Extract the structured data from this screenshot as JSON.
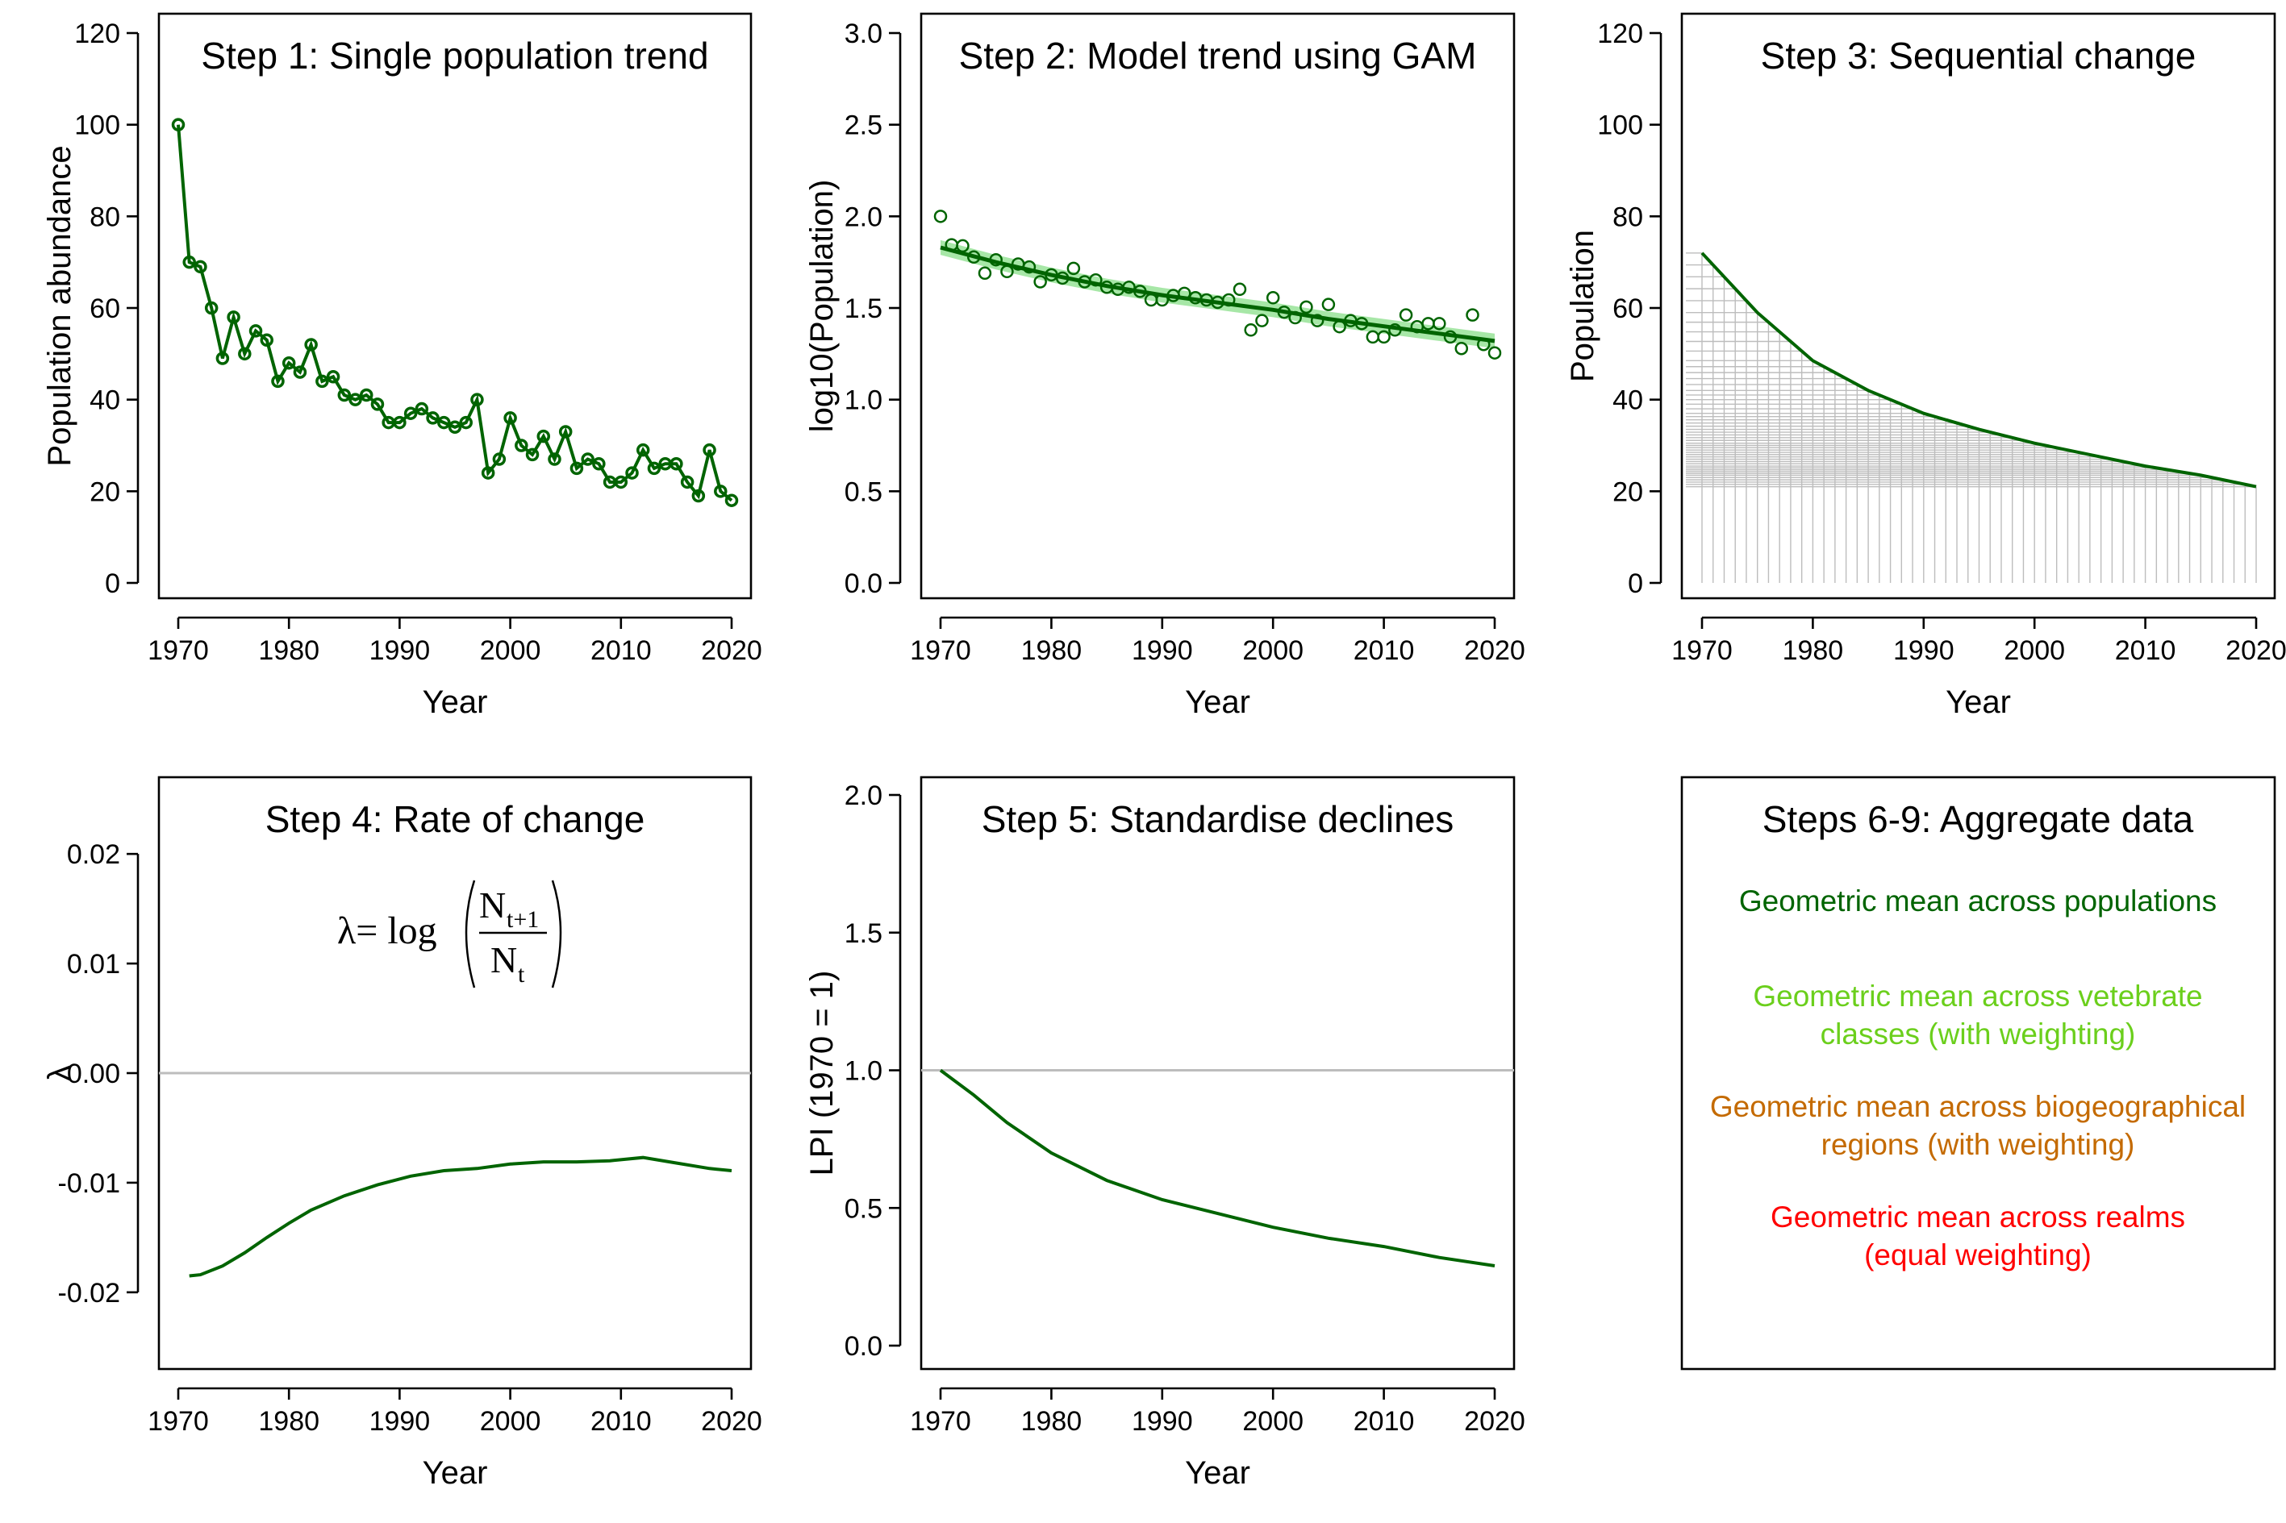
{
  "colors": {
    "dark_green": "#006400",
    "band_green": "#5fd35f",
    "light_green": "#6bcf1c",
    "brown": "#c46a00",
    "red": "#ff0000",
    "grid_grey": "#bdbdbd"
  },
  "chart_data": [
    {
      "type": "line",
      "title": "Step 1: Single population trend",
      "xlabel": "Year",
      "ylabel": "Population abundance",
      "xlim": [
        1970,
        2020
      ],
      "ylim": [
        0,
        120
      ],
      "xticks": [
        "1970",
        "1980",
        "1990",
        "2000",
        "2010",
        "2020"
      ],
      "yticks": [
        "0",
        "20",
        "40",
        "60",
        "80",
        "100",
        "120"
      ],
      "markers": true,
      "series": [
        {
          "x": [
            1970,
            1971,
            1972,
            1973,
            1974,
            1975,
            1976,
            1977,
            1978,
            1979,
            1980,
            1981,
            1982,
            1983,
            1984,
            1985,
            1986,
            1987,
            1988,
            1989,
            1990,
            1991,
            1992,
            1993,
            1994,
            1995,
            1996,
            1997,
            1998,
            1999,
            2000,
            2001,
            2002,
            2003,
            2004,
            2005,
            2006,
            2007,
            2008,
            2009,
            2010,
            2011,
            2012,
            2013,
            2014,
            2015,
            2016,
            2017,
            2018,
            2019,
            2020
          ],
          "y": [
            100,
            70,
            69,
            60,
            49,
            58,
            50,
            55,
            53,
            44,
            48,
            46,
            52,
            44,
            45,
            41,
            40,
            41,
            39,
            35,
            35,
            37,
            38,
            36,
            35,
            34,
            35,
            40,
            24,
            27,
            36,
            30,
            28,
            32,
            27,
            33,
            25,
            27,
            26,
            22,
            22,
            24,
            29,
            25,
            26,
            26,
            22,
            19,
            29,
            20,
            18
          ]
        }
      ]
    },
    {
      "type": "scatter",
      "title": "Step 2: Model trend using GAM",
      "xlabel": "Year",
      "ylabel": "log10(Population)",
      "xlim": [
        1970,
        2020
      ],
      "ylim": [
        0,
        3
      ],
      "xticks": [
        "1970",
        "1980",
        "1990",
        "2000",
        "2010",
        "2020"
      ],
      "yticks": [
        "0.0",
        "0.5",
        "1.0",
        "1.5",
        "2.0",
        "2.5",
        "3.0"
      ],
      "points": {
        "x": [
          1970,
          1971,
          1972,
          1973,
          1974,
          1975,
          1976,
          1977,
          1978,
          1979,
          1980,
          1981,
          1982,
          1983,
          1984,
          1985,
          1986,
          1987,
          1988,
          1989,
          1990,
          1991,
          1992,
          1993,
          1994,
          1995,
          1996,
          1997,
          1998,
          1999,
          2000,
          2001,
          2002,
          2003,
          2004,
          2005,
          2006,
          2007,
          2008,
          2009,
          2010,
          2011,
          2012,
          2013,
          2014,
          2015,
          2016,
          2017,
          2018,
          2019,
          2020
        ],
        "y": [
          2.0,
          1.845,
          1.839,
          1.778,
          1.69,
          1.763,
          1.699,
          1.74,
          1.724,
          1.643,
          1.681,
          1.663,
          1.716,
          1.643,
          1.653,
          1.613,
          1.602,
          1.613,
          1.591,
          1.544,
          1.544,
          1.568,
          1.58,
          1.556,
          1.544,
          1.531,
          1.544,
          1.602,
          1.38,
          1.431,
          1.556,
          1.477,
          1.447,
          1.505,
          1.431,
          1.519,
          1.398,
          1.431,
          1.415,
          1.342,
          1.342,
          1.38,
          1.462,
          1.398,
          1.415,
          1.415,
          1.342,
          1.279,
          1.462,
          1.301,
          1.255
        ]
      },
      "gam_fit": {
        "x": [
          1970,
          1975,
          1980,
          1985,
          1990,
          1995,
          2000,
          2005,
          2010,
          2015,
          2020
        ],
        "y": [
          1.83,
          1.75,
          1.68,
          1.62,
          1.57,
          1.53,
          1.49,
          1.44,
          1.4,
          1.36,
          1.32
        ],
        "ci_halfwidth": 0.04
      }
    },
    {
      "type": "line",
      "title": "Step 3: Sequential change",
      "xlabel": "Year",
      "ylabel": "Population",
      "xlim": [
        1970,
        2020
      ],
      "ylim": [
        0,
        120
      ],
      "xticks": [
        "1970",
        "1980",
        "1990",
        "2000",
        "2010",
        "2020"
      ],
      "yticks": [
        "0",
        "20",
        "40",
        "60",
        "80",
        "100",
        "120"
      ],
      "drop_lines": true,
      "series": [
        {
          "x": [
            1970,
            1975,
            1980,
            1985,
            1990,
            1995,
            2000,
            2005,
            2010,
            2015,
            2020
          ],
          "y": [
            72,
            59,
            48.5,
            42,
            37,
            33.5,
            30.5,
            28,
            25.5,
            23.5,
            21
          ]
        }
      ]
    },
    {
      "type": "line",
      "title": "Step 4: Rate of change",
      "xlabel": "Year",
      "ylabel": "λ",
      "xlim": [
        1970,
        2020
      ],
      "ylim": [
        -0.027,
        0.027
      ],
      "xticks": [
        "1970",
        "1980",
        "1990",
        "2000",
        "2010",
        "2020"
      ],
      "yticks": [
        "-0.02",
        "-0.01",
        "0.00",
        "0.01",
        "0.02"
      ],
      "reference_line": 0,
      "formula": {
        "lhs": "λ= log",
        "numerator": "N",
        "numerator_sub": "t+1",
        "denominator": "N",
        "denominator_sub": "t"
      },
      "series": [
        {
          "x": [
            1971,
            1972,
            1974,
            1976,
            1978,
            1980,
            1982,
            1985,
            1988,
            1991,
            1994,
            1997,
            2000,
            2003,
            2006,
            2009,
            2012,
            2015,
            2018,
            2020
          ],
          "y": [
            -0.0185,
            -0.0184,
            -0.0176,
            -0.0164,
            -0.015,
            -0.0137,
            -0.0125,
            -0.0112,
            -0.0102,
            -0.0094,
            -0.0089,
            -0.0087,
            -0.0083,
            -0.0081,
            -0.0081,
            -0.008,
            -0.0077,
            -0.0082,
            -0.0087,
            -0.0089
          ]
        }
      ]
    },
    {
      "type": "line",
      "title": "Step 5: Standardise declines",
      "xlabel": "Year",
      "ylabel": "LPI (1970 = 1)",
      "xlim": [
        1970,
        2020
      ],
      "ylim": [
        0,
        2
      ],
      "xticks": [
        "1970",
        "1980",
        "1990",
        "2000",
        "2010",
        "2020"
      ],
      "yticks": [
        "0.0",
        "0.5",
        "1.0",
        "1.5",
        "2.0"
      ],
      "reference_line": 1,
      "series": [
        {
          "x": [
            1970,
            1973,
            1976,
            1980,
            1985,
            1990,
            1995,
            2000,
            2005,
            2010,
            2015,
            2020
          ],
          "y": [
            1.0,
            0.91,
            0.81,
            0.7,
            0.6,
            0.53,
            0.48,
            0.43,
            0.39,
            0.36,
            0.32,
            0.29
          ]
        }
      ]
    }
  ],
  "aggregate_panel": {
    "title": "Steps 6-9: Aggregate data",
    "items": [
      {
        "color": "#006400",
        "lines": [
          "Geometric mean across populations"
        ]
      },
      {
        "color": "#6bcf1c",
        "lines": [
          "Geometric mean across vetebrate",
          "classes (with weighting)"
        ]
      },
      {
        "color": "#c46a00",
        "lines": [
          "Geometric mean across biogeographical",
          "regions (with weighting)"
        ]
      },
      {
        "color": "#ff0000",
        "lines": [
          "Geometric mean across realms",
          "(equal weighting)"
        ]
      }
    ]
  }
}
